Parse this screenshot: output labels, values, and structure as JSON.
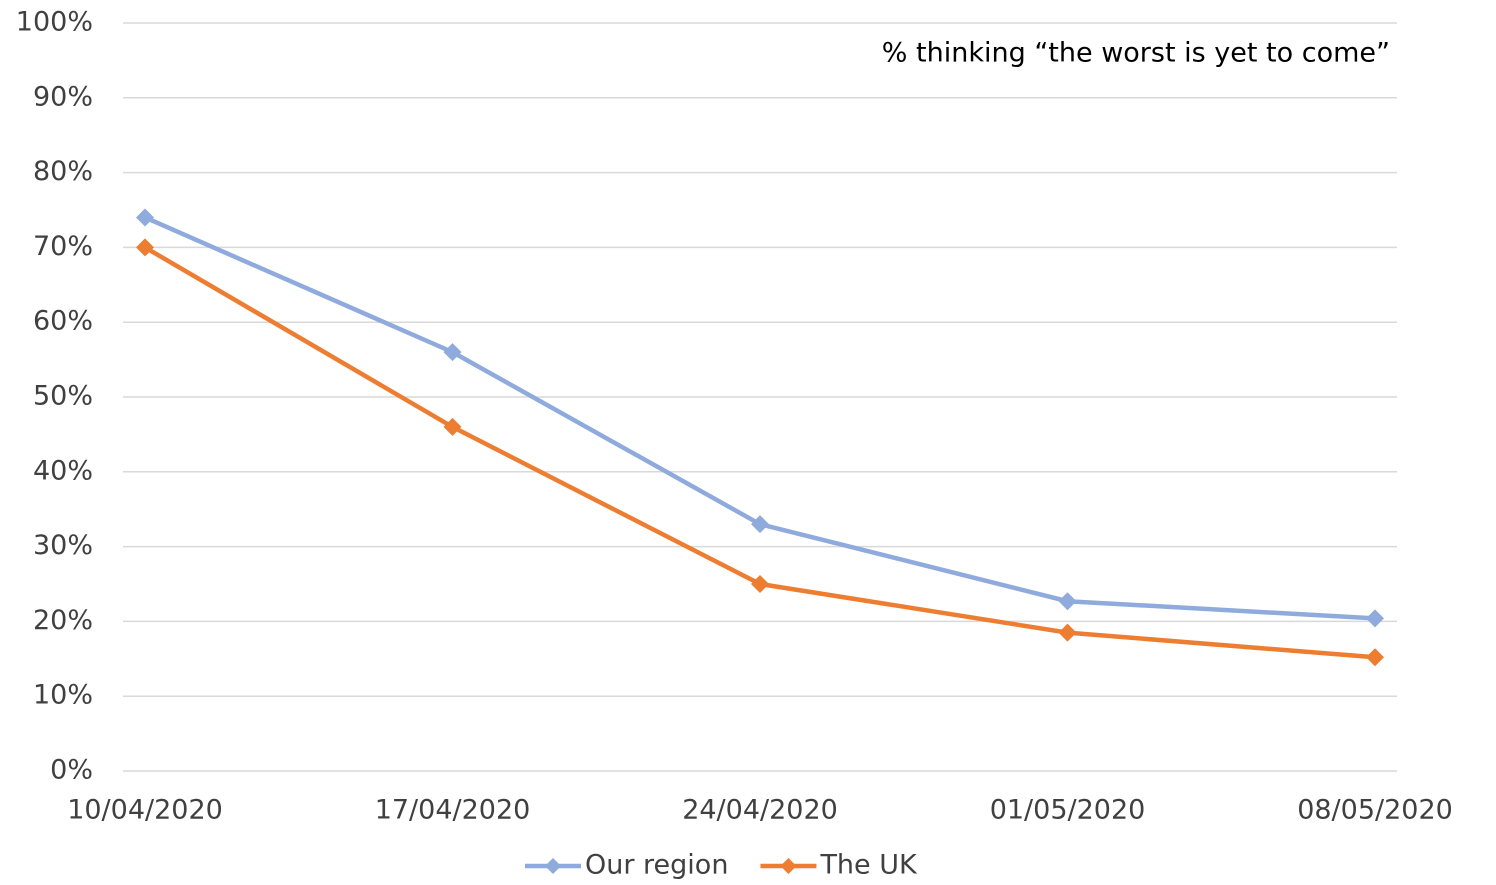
{
  "chart_data": {
    "type": "line",
    "annotation": "% thinking “the worst is yet to come”",
    "categories": [
      "10/04/2020",
      "17/04/2020",
      "24/04/2020",
      "01/05/2020",
      "08/05/2020"
    ],
    "series": [
      {
        "name": "Our region",
        "color": "#8faadc",
        "values": [
          74,
          56,
          33,
          22.7,
          20.4
        ]
      },
      {
        "name": "The UK",
        "color": "#ed7d31",
        "values": [
          70,
          46,
          25,
          18.5,
          15.2
        ]
      }
    ],
    "ylim": [
      0,
      100
    ],
    "yticks": [
      {
        "value": 0,
        "label": "0%"
      },
      {
        "value": 10,
        "label": "10%"
      },
      {
        "value": 20,
        "label": "20%"
      },
      {
        "value": 30,
        "label": "30%"
      },
      {
        "value": 40,
        "label": "40%"
      },
      {
        "value": 50,
        "label": "50%"
      },
      {
        "value": 60,
        "label": "60%"
      },
      {
        "value": 70,
        "label": "70%"
      },
      {
        "value": 80,
        "label": "80%"
      },
      {
        "value": 90,
        "label": "90%"
      },
      {
        "value": 100,
        "label": "100%"
      }
    ],
    "grid": true,
    "legend": "bottom"
  }
}
